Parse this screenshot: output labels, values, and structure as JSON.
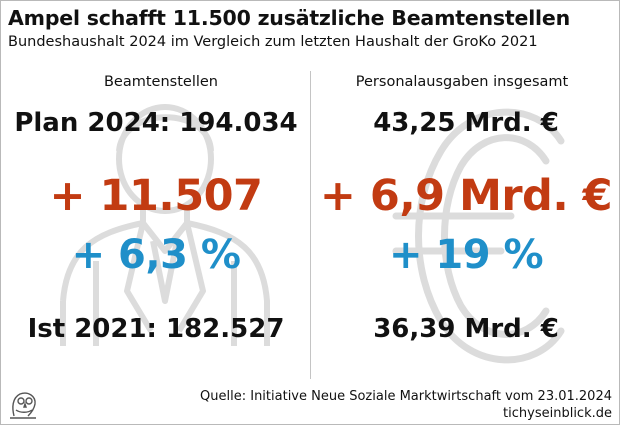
{
  "header": {
    "title": "Ampel schafft 11.500 zusätzliche Beamtenstellen",
    "subtitle": "Bundeshaushalt 2024 im Vergleich zum letzten Haushalt der GroKo 2021"
  },
  "left": {
    "heading": "Beamtenstellen",
    "top_value": "Plan 2024: 194.034",
    "change_abs": "+ 11.507",
    "change_pct": "+ 6,3 %",
    "bottom_value": "Ist 2021: 182.527"
  },
  "right": {
    "heading": "Personalausgaben insgesamt",
    "top_value": "43,25 Mrd. €",
    "change_abs": "+ 6,9 Mrd. €",
    "change_pct": "+ 19 %",
    "bottom_value": "36,39 Mrd. €"
  },
  "footer": {
    "source": "Quelle: Initiative Neue Soziale Marktwirtschaft vom 23.01.2024",
    "site": "tichyseinblick.de"
  },
  "colors": {
    "accent_red": "#c23b12",
    "accent_blue": "#1f8fc9",
    "text": "#111111",
    "watermark": "#dcdcdc"
  },
  "icons": {
    "left_background": "civil-servant-silhouette-icon",
    "right_background": "euro-sign-icon",
    "logo": "owl-logo-icon"
  }
}
